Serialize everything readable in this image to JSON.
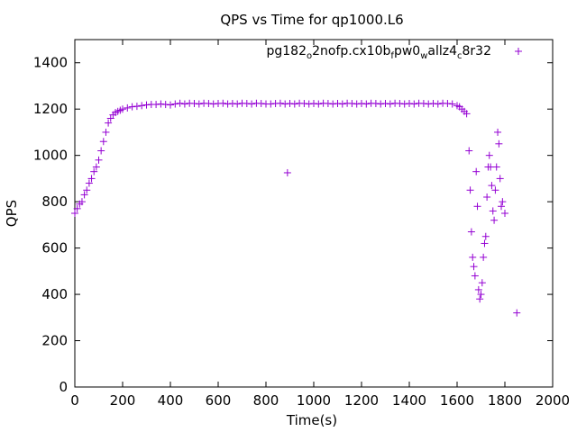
{
  "chart_data": {
    "type": "scatter",
    "title": "QPS vs Time for qp1000.L6",
    "xlabel": "Time(s)",
    "ylabel": "QPS",
    "xlim": [
      0,
      2000
    ],
    "ylim": [
      0,
      1500
    ],
    "xticks": [
      0,
      200,
      400,
      600,
      800,
      1000,
      1200,
      1400,
      1600,
      1800,
      2000
    ],
    "yticks": [
      0,
      200,
      400,
      600,
      800,
      1000,
      1200,
      1400
    ],
    "grid": false,
    "legend_position": "top-right",
    "marker": "+",
    "series": [
      {
        "name": "pg182_o2nofp.cx10b_fpw0_wallz4_c8r32",
        "color": "#9400d3",
        "x": [
          0,
          10,
          20,
          30,
          40,
          50,
          60,
          70,
          80,
          90,
          100,
          110,
          120,
          130,
          140,
          150,
          160,
          170,
          180,
          190,
          200,
          220,
          240,
          260,
          280,
          300,
          320,
          340,
          360,
          380,
          400,
          420,
          440,
          460,
          480,
          500,
          520,
          540,
          560,
          580,
          600,
          620,
          640,
          660,
          680,
          700,
          720,
          740,
          760,
          780,
          800,
          820,
          840,
          860,
          880,
          890,
          900,
          920,
          940,
          960,
          980,
          1000,
          1020,
          1040,
          1060,
          1080,
          1100,
          1120,
          1140,
          1160,
          1180,
          1200,
          1220,
          1240,
          1260,
          1280,
          1300,
          1320,
          1340,
          1360,
          1380,
          1400,
          1420,
          1440,
          1460,
          1480,
          1500,
          1520,
          1540,
          1560,
          1580,
          1600,
          1610,
          1620,
          1630,
          1640,
          1650,
          1655,
          1660,
          1665,
          1670,
          1675,
          1680,
          1685,
          1690,
          1695,
          1700,
          1705,
          1710,
          1715,
          1720,
          1725,
          1730,
          1735,
          1740,
          1745,
          1750,
          1755,
          1760,
          1765,
          1770,
          1775,
          1780,
          1785,
          1790,
          1800,
          1850
        ],
        "values": [
          750,
          770,
          790,
          800,
          830,
          850,
          880,
          900,
          930,
          950,
          980,
          1020,
          1060,
          1100,
          1140,
          1160,
          1175,
          1185,
          1190,
          1195,
          1200,
          1205,
          1210,
          1212,
          1215,
          1218,
          1220,
          1220,
          1222,
          1220,
          1218,
          1222,
          1225,
          1222,
          1225,
          1224,
          1222,
          1225,
          1224,
          1222,
          1224,
          1225,
          1222,
          1224,
          1222,
          1225,
          1224,
          1222,
          1225,
          1224,
          1222,
          1222,
          1224,
          1225,
          1222,
          925,
          1224,
          1222,
          1225,
          1224,
          1222,
          1224,
          1222,
          1225,
          1224,
          1222,
          1224,
          1222,
          1225,
          1224,
          1222,
          1224,
          1222,
          1225,
          1224,
          1222,
          1224,
          1222,
          1225,
          1224,
          1222,
          1224,
          1222,
          1225,
          1224,
          1222,
          1224,
          1222,
          1225,
          1224,
          1222,
          1215,
          1210,
          1200,
          1190,
          1180,
          1020,
          850,
          670,
          560,
          520,
          480,
          930,
          780,
          420,
          380,
          400,
          450,
          560,
          620,
          650,
          820,
          950,
          1000,
          950,
          870,
          760,
          720,
          850,
          950,
          1100,
          1050,
          900,
          780,
          800,
          750,
          320
        ]
      }
    ]
  }
}
